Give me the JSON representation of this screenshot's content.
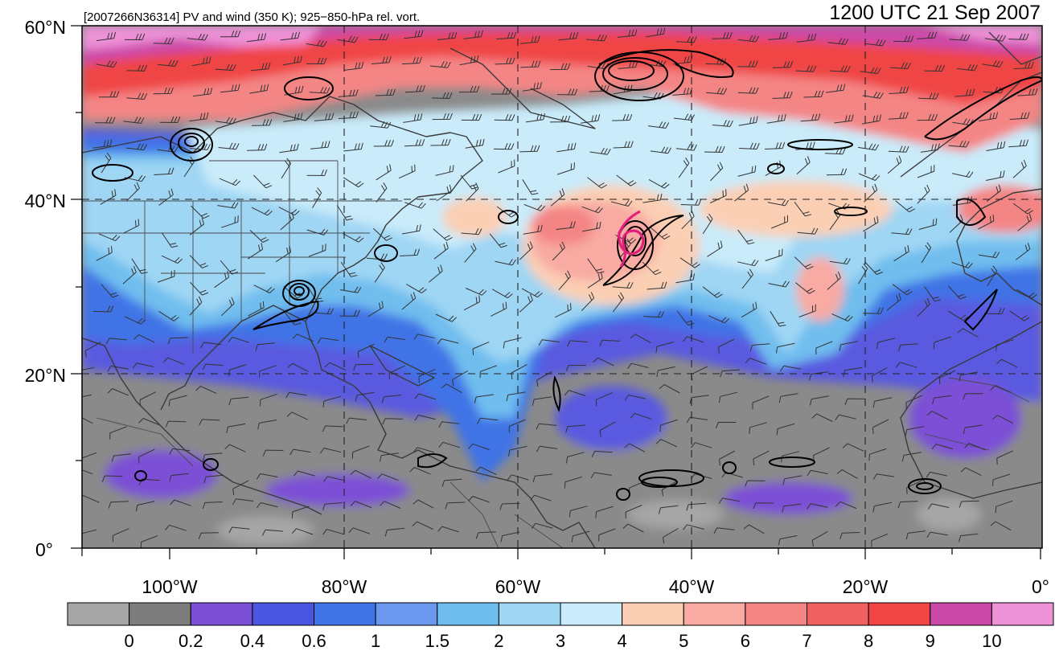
{
  "header": {
    "left_title": "[2007266N36314] PV and wind (350 K); 925−850-hPa rel. vort.",
    "right_title": "1200 UTC 21 Sep 2007"
  },
  "map": {
    "latitude_labels": [
      "60°N",
      "40°N",
      "20°N",
      "0°"
    ],
    "longitude_labels": [
      "100°W",
      "80°W",
      "60°W",
      "40°W",
      "20°W",
      "0°"
    ],
    "lon_range": [
      -110,
      0
    ],
    "lat_range": [
      0,
      60
    ],
    "storm_marker_color": "#e0207a"
  },
  "colorbar": {
    "colors": [
      "#a6a6a6",
      "#7d7d7d",
      "#7b4fd6",
      "#4a55e0",
      "#3f73e6",
      "#6b98ee",
      "#6fbdee",
      "#9fd6f4",
      "#c9ebfa",
      "#fbcfb4",
      "#f8aaa3",
      "#f48585",
      "#f26161",
      "#f04545",
      "#cc48a8",
      "#ee92d8"
    ],
    "labels": [
      "0",
      "0.2",
      "0.4",
      "0.6",
      "1",
      "1.5",
      "2",
      "3",
      "4",
      "5",
      "6",
      "7",
      "8",
      "9",
      "10"
    ]
  }
}
